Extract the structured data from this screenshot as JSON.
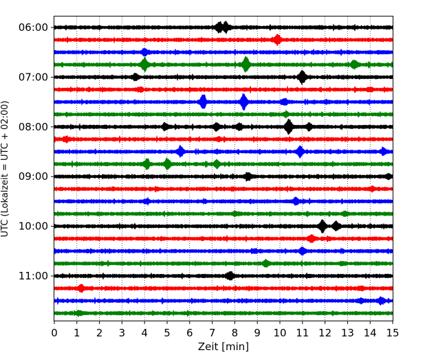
{
  "chart_data": {
    "type": "line",
    "title": "",
    "xlabel": "Zeit  [min]",
    "ylabel": "UTC (Lokalzeit = UTC + 02:00)",
    "xlim": [
      0,
      15
    ],
    "x_ticks": [
      "0",
      "1",
      "2",
      "3",
      "4",
      "5",
      "6",
      "7",
      "8",
      "9",
      "10",
      "11",
      "12",
      "13",
      "14",
      "15"
    ],
    "y_tick_labels": [
      "06:00",
      "07:00",
      "08:00",
      "09:00",
      "10:00",
      "11:00"
    ],
    "grid": {
      "x": "dotted",
      "y": "off"
    },
    "trace_interval_minutes": 15,
    "trace_start": "06:00",
    "trace_colors_cycle": [
      "#000000",
      "#ff0000",
      "#0000ff",
      "#008000"
    ],
    "traces": [
      {
        "start": "06:00",
        "color": "#000000",
        "events": [
          [
            7.3,
            3
          ],
          [
            7.6,
            3
          ]
        ]
      },
      {
        "start": "06:15",
        "color": "#ff0000",
        "events": [
          [
            9.9,
            3
          ]
        ]
      },
      {
        "start": "06:30",
        "color": "#0000ff",
        "events": [
          [
            4.0,
            2
          ]
        ]
      },
      {
        "start": "06:45",
        "color": "#008000",
        "events": [
          [
            4.0,
            4
          ],
          [
            8.5,
            5
          ],
          [
            13.3,
            3
          ]
        ]
      },
      {
        "start": "07:00",
        "color": "#000000",
        "events": [
          [
            11.0,
            4
          ],
          [
            3.6,
            2
          ]
        ]
      },
      {
        "start": "07:15",
        "color": "#ff0000",
        "events": [
          [
            3.8,
            1
          ],
          [
            14.0,
            1
          ]
        ]
      },
      {
        "start": "07:30",
        "color": "#0000ff",
        "events": [
          [
            6.6,
            4
          ],
          [
            8.4,
            6
          ],
          [
            10.2,
            2
          ]
        ]
      },
      {
        "start": "07:45",
        "color": "#008000",
        "events": [
          [
            10.3,
            1
          ]
        ]
      },
      {
        "start": "08:00",
        "color": "#000000",
        "events": [
          [
            4.9,
            2
          ],
          [
            7.2,
            2
          ],
          [
            8.2,
            2
          ],
          [
            10.4,
            5
          ],
          [
            11.3,
            2
          ]
        ]
      },
      {
        "start": "08:15",
        "color": "#ff0000",
        "events": [
          [
            0.5,
            1
          ],
          [
            7.3,
            1
          ]
        ]
      },
      {
        "start": "08:30",
        "color": "#0000ff",
        "events": [
          [
            5.6,
            3
          ],
          [
            10.9,
            3
          ],
          [
            14.6,
            2
          ]
        ]
      },
      {
        "start": "08:45",
        "color": "#008000",
        "events": [
          [
            4.1,
            3
          ],
          [
            5.0,
            3
          ],
          [
            7.2,
            2
          ]
        ]
      },
      {
        "start": "09:00",
        "color": "#000000",
        "events": [
          [
            8.6,
            2
          ],
          [
            14.8,
            1
          ]
        ]
      },
      {
        "start": "09:15",
        "color": "#ff0000",
        "events": [
          [
            14.1,
            1
          ]
        ]
      },
      {
        "start": "09:30",
        "color": "#0000ff",
        "events": [
          [
            4.1,
            1
          ],
          [
            10.7,
            2
          ]
        ]
      },
      {
        "start": "09:45",
        "color": "#008000",
        "events": [
          [
            8.0,
            1
          ],
          [
            12.9,
            1
          ]
        ]
      },
      {
        "start": "10:00",
        "color": "#000000",
        "events": [
          [
            11.9,
            4
          ],
          [
            12.5,
            3
          ]
        ]
      },
      {
        "start": "10:15",
        "color": "#ff0000",
        "events": [
          [
            11.4,
            2
          ]
        ]
      },
      {
        "start": "10:30",
        "color": "#0000ff",
        "events": [
          [
            11.0,
            2
          ],
          [
            8.9,
            1
          ]
        ]
      },
      {
        "start": "10:45",
        "color": "#008000",
        "events": [
          [
            9.4,
            2
          ],
          [
            12.8,
            1
          ]
        ]
      },
      {
        "start": "11:00",
        "color": "#000000",
        "events": [
          [
            7.8,
            3
          ]
        ]
      },
      {
        "start": "11:15",
        "color": "#ff0000",
        "events": [
          [
            1.2,
            2
          ],
          [
            13.6,
            1
          ]
        ]
      },
      {
        "start": "11:30",
        "color": "#0000ff",
        "events": [
          [
            14.5,
            2
          ],
          [
            13.6,
            1
          ]
        ]
      },
      {
        "start": "11:45",
        "color": "#008000",
        "events": [
          [
            1.1,
            1
          ]
        ]
      }
    ]
  }
}
